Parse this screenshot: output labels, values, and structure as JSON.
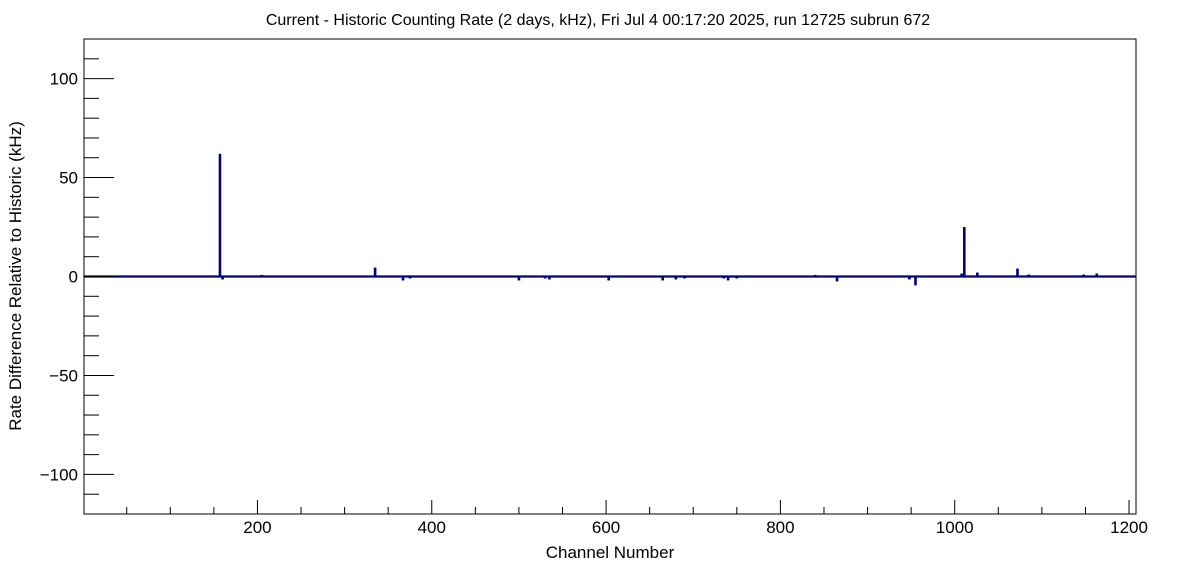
{
  "chart_data": {
    "type": "bar",
    "title": "Current - Historic Counting Rate (2 days, kHz), Fri Jul  4 00:17:20 2025, run 12725 subrun 672",
    "xlabel": "Channel Number",
    "ylabel": "Rate Difference Relative to Historic (kHz)",
    "xlim": [
      1,
      1208
    ],
    "ylim": [
      -120,
      120
    ],
    "x_ticks": [
      200,
      400,
      600,
      800,
      1000,
      1200
    ],
    "x_tick_labels": [
      "200",
      "400",
      "600",
      "800",
      "1000",
      "1200"
    ],
    "y_ticks": [
      -100,
      -50,
      0,
      50,
      100
    ],
    "y_tick_labels": [
      "−100",
      "−50",
      "0",
      "50",
      "100"
    ],
    "grid": false,
    "legend": "none",
    "color": "#000080",
    "baseline": 0,
    "points": [
      {
        "x": 157,
        "y": 62
      },
      {
        "x": 160,
        "y": -1.5
      },
      {
        "x": 205,
        "y": 0.8
      },
      {
        "x": 335,
        "y": 4.5
      },
      {
        "x": 367,
        "y": -2
      },
      {
        "x": 375,
        "y": -1
      },
      {
        "x": 500,
        "y": -2
      },
      {
        "x": 530,
        "y": -1
      },
      {
        "x": 535,
        "y": -1.5
      },
      {
        "x": 603,
        "y": -2
      },
      {
        "x": 665,
        "y": -2
      },
      {
        "x": 680,
        "y": -1.5
      },
      {
        "x": 690,
        "y": -1
      },
      {
        "x": 735,
        "y": -1
      },
      {
        "x": 740,
        "y": -2
      },
      {
        "x": 750,
        "y": -1
      },
      {
        "x": 840,
        "y": 0.8
      },
      {
        "x": 865,
        "y": -2.5
      },
      {
        "x": 948,
        "y": -1.5
      },
      {
        "x": 955,
        "y": -4.5
      },
      {
        "x": 1008,
        "y": 1.5
      },
      {
        "x": 1011,
        "y": 25
      },
      {
        "x": 1026,
        "y": 2
      },
      {
        "x": 1072,
        "y": 4
      },
      {
        "x": 1085,
        "y": 1
      },
      {
        "x": 1148,
        "y": 1
      },
      {
        "x": 1163,
        "y": 1.5
      }
    ]
  }
}
